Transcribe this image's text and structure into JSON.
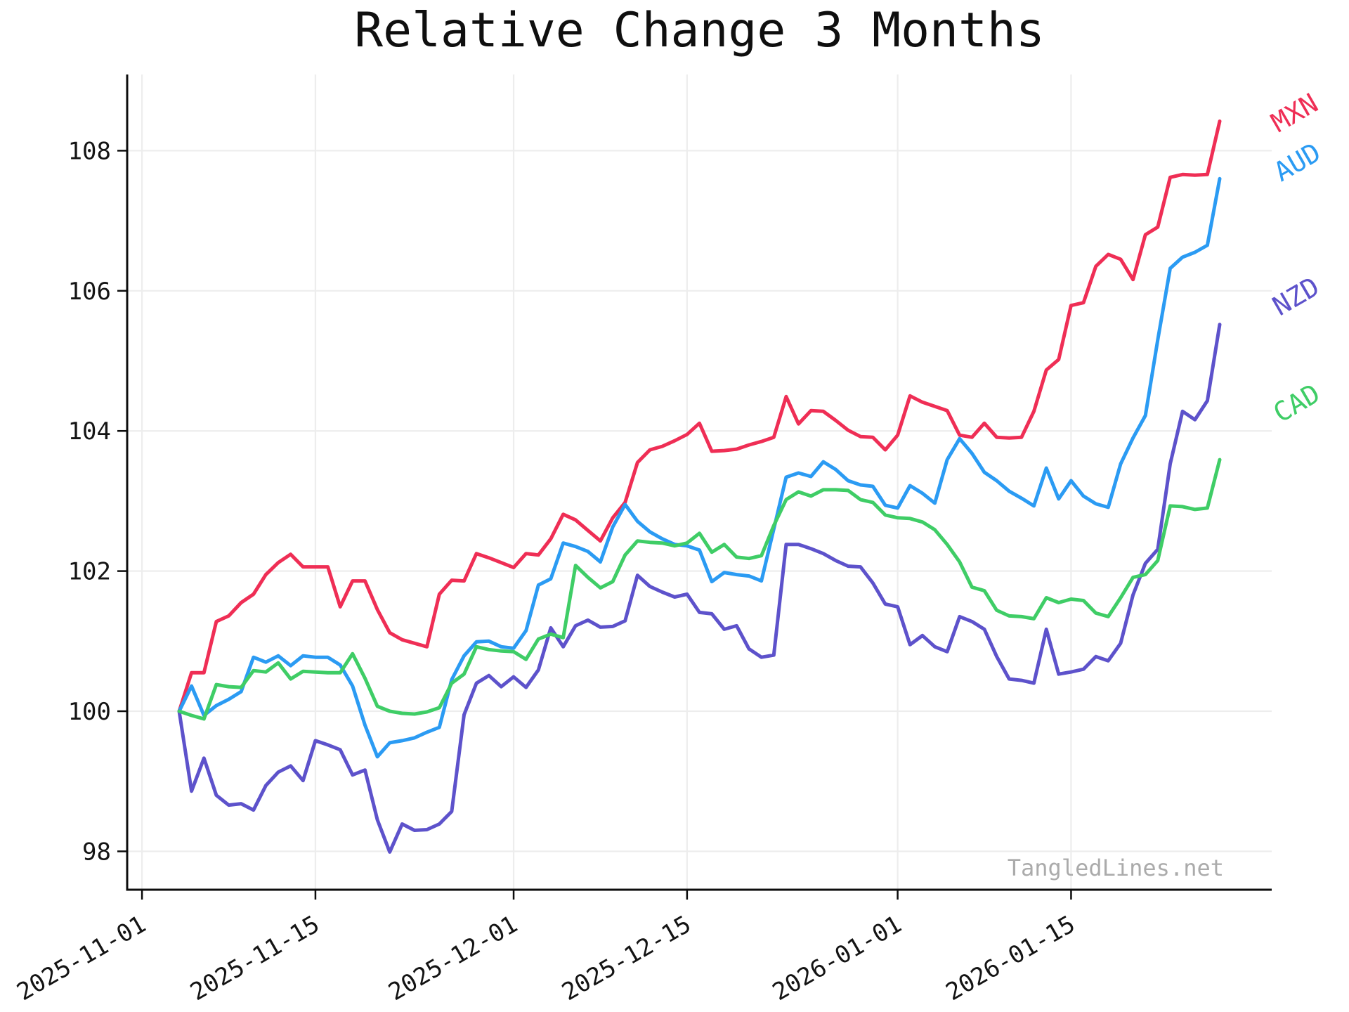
{
  "page": {
    "title": "Relative Change 3 Months",
    "watermark": "TangledLines.net"
  },
  "chart_data": {
    "type": "line",
    "title": "Relative Change 3 Months",
    "xlabel": "",
    "ylabel": "",
    "grid": true,
    "legend_position": "right-end-labels",
    "ylim": [
      97.45,
      109.1
    ],
    "y_ticks": [
      98,
      100,
      102,
      104,
      106,
      108
    ],
    "x_ticks": [
      {
        "date": "2025-11-01",
        "label": "2025-11-01"
      },
      {
        "date": "2025-11-15",
        "label": "2025-11-15"
      },
      {
        "date": "2025-12-01",
        "label": "2025-12-01"
      },
      {
        "date": "2025-12-15",
        "label": "2025-12-15"
      },
      {
        "date": "2026-01-01",
        "label": "2026-01-01"
      },
      {
        "date": "2026-01-15",
        "label": "2026-01-15"
      }
    ],
    "dates": [
      "2025-11-04",
      "2025-11-05",
      "2025-11-06",
      "2025-11-07",
      "2025-11-08",
      "2025-11-09",
      "2025-11-10",
      "2025-11-11",
      "2025-11-12",
      "2025-11-13",
      "2025-11-14",
      "2025-11-15",
      "2025-11-16",
      "2025-11-17",
      "2025-11-18",
      "2025-11-19",
      "2025-11-20",
      "2025-11-21",
      "2025-11-22",
      "2025-11-23",
      "2025-11-24",
      "2025-11-25",
      "2025-11-26",
      "2025-11-27",
      "2025-11-28",
      "2025-11-29",
      "2025-11-30",
      "2025-12-01",
      "2025-12-02",
      "2025-12-03",
      "2025-12-04",
      "2025-12-05",
      "2025-12-06",
      "2025-12-07",
      "2025-12-08",
      "2025-12-09",
      "2025-12-10",
      "2025-12-11",
      "2025-12-12",
      "2025-12-13",
      "2025-12-14",
      "2025-12-15",
      "2025-12-16",
      "2025-12-17",
      "2025-12-18",
      "2025-12-19",
      "2025-12-20",
      "2025-12-21",
      "2025-12-22",
      "2025-12-23",
      "2025-12-24",
      "2025-12-25",
      "2025-12-26",
      "2025-12-27",
      "2025-12-28",
      "2025-12-29",
      "2025-12-30",
      "2025-12-31",
      "2026-01-01",
      "2026-01-02",
      "2026-01-03",
      "2026-01-04",
      "2026-01-05",
      "2026-01-06",
      "2026-01-07",
      "2026-01-08",
      "2026-01-09",
      "2026-01-10",
      "2026-01-11",
      "2026-01-12",
      "2026-01-13",
      "2026-01-14",
      "2026-01-15",
      "2026-01-16",
      "2026-01-17",
      "2026-01-18",
      "2026-01-19",
      "2026-01-20",
      "2026-01-21",
      "2026-01-22",
      "2026-01-23",
      "2026-01-24",
      "2026-01-25",
      "2026-01-26",
      "2026-01-27"
    ],
    "series": [
      {
        "name": "MXN",
        "color": "#ef2e55",
        "values": [
          100.0,
          100.55,
          100.55,
          101.28,
          101.36,
          101.55,
          101.67,
          101.95,
          102.12,
          102.24,
          102.06,
          102.06,
          102.06,
          101.49,
          101.86,
          101.86,
          101.45,
          101.12,
          101.02,
          100.97,
          100.92,
          101.67,
          101.87,
          101.86,
          102.25,
          102.19,
          102.12,
          102.05,
          102.25,
          102.23,
          102.46,
          102.81,
          102.73,
          102.58,
          102.43,
          102.76,
          102.98,
          103.55,
          103.73,
          103.78,
          103.86,
          103.95,
          104.11,
          103.71,
          103.72,
          103.74,
          103.8,
          103.85,
          103.91,
          104.49,
          104.1,
          104.29,
          104.28,
          104.15,
          104.01,
          103.92,
          103.91,
          103.73,
          103.94,
          104.5,
          104.41,
          104.35,
          104.29,
          103.94,
          103.91,
          104.11,
          103.91,
          103.9,
          103.91,
          104.28,
          104.87,
          105.02,
          105.79,
          105.83,
          106.35,
          106.52,
          106.45,
          106.16,
          106.8,
          106.91,
          107.62,
          107.66,
          107.65,
          107.66,
          108.42
        ]
      },
      {
        "name": "AUD",
        "color": "#2b9bf3",
        "values": [
          100.0,
          100.36,
          99.94,
          100.08,
          100.17,
          100.28,
          100.77,
          100.7,
          100.79,
          100.65,
          100.79,
          100.77,
          100.77,
          100.66,
          100.36,
          99.8,
          99.35,
          99.55,
          99.58,
          99.62,
          99.7,
          99.77,
          100.45,
          100.79,
          100.99,
          101.0,
          100.92,
          100.9,
          101.15,
          101.8,
          101.89,
          102.4,
          102.35,
          102.28,
          102.13,
          102.63,
          102.95,
          102.71,
          102.56,
          102.46,
          102.38,
          102.36,
          102.3,
          101.85,
          101.98,
          101.95,
          101.93,
          101.86,
          102.6,
          103.34,
          103.4,
          103.35,
          103.56,
          103.45,
          103.29,
          103.23,
          103.21,
          102.94,
          102.9,
          103.22,
          103.11,
          102.97,
          103.59,
          103.89,
          103.68,
          103.41,
          103.29,
          103.14,
          103.04,
          102.93,
          103.47,
          103.03,
          103.29,
          103.07,
          102.96,
          102.91,
          103.53,
          103.9,
          104.22,
          105.3,
          106.32,
          106.48,
          106.55,
          106.65,
          107.6
        ]
      },
      {
        "name": "NZD",
        "color": "#5d52cb",
        "values": [
          100.0,
          98.86,
          99.33,
          98.8,
          98.66,
          98.68,
          98.59,
          98.94,
          99.13,
          99.22,
          99.01,
          99.58,
          99.52,
          99.45,
          99.09,
          99.16,
          98.45,
          97.99,
          98.39,
          98.3,
          98.31,
          98.39,
          98.57,
          99.95,
          100.4,
          100.51,
          100.35,
          100.49,
          100.34,
          100.59,
          101.19,
          100.92,
          101.22,
          101.3,
          101.2,
          101.21,
          101.29,
          101.94,
          101.78,
          101.7,
          101.63,
          101.67,
          101.41,
          101.39,
          101.17,
          101.22,
          100.89,
          100.77,
          100.8,
          102.38,
          102.38,
          102.32,
          102.25,
          102.15,
          102.07,
          102.06,
          101.83,
          101.53,
          101.49,
          100.95,
          101.08,
          100.92,
          100.85,
          101.35,
          101.28,
          101.17,
          100.78,
          100.46,
          100.44,
          100.4,
          101.17,
          100.53,
          100.56,
          100.6,
          100.78,
          100.72,
          100.97,
          101.66,
          102.11,
          102.31,
          103.53,
          104.28,
          104.16,
          104.43,
          105.52
        ]
      },
      {
        "name": "CAD",
        "color": "#3fcd66",
        "values": [
          100.0,
          99.94,
          99.89,
          100.38,
          100.35,
          100.34,
          100.58,
          100.56,
          100.69,
          100.46,
          100.57,
          100.56,
          100.55,
          100.55,
          100.82,
          100.47,
          100.07,
          100.0,
          99.97,
          99.96,
          99.99,
          100.05,
          100.4,
          100.53,
          100.92,
          100.88,
          100.86,
          100.85,
          100.74,
          101.03,
          101.1,
          101.05,
          102.08,
          101.91,
          101.76,
          101.85,
          102.23,
          102.43,
          102.41,
          102.4,
          102.36,
          102.4,
          102.54,
          102.27,
          102.38,
          102.2,
          102.18,
          102.22,
          102.65,
          103.02,
          103.13,
          103.07,
          103.16,
          103.16,
          103.15,
          103.02,
          102.98,
          102.8,
          102.76,
          102.75,
          102.7,
          102.59,
          102.38,
          102.13,
          101.77,
          101.72,
          101.44,
          101.36,
          101.35,
          101.32,
          101.62,
          101.55,
          101.6,
          101.58,
          101.4,
          101.35,
          101.62,
          101.91,
          101.95,
          102.15,
          102.93,
          102.92,
          102.88,
          102.9,
          103.59
        ]
      }
    ]
  }
}
